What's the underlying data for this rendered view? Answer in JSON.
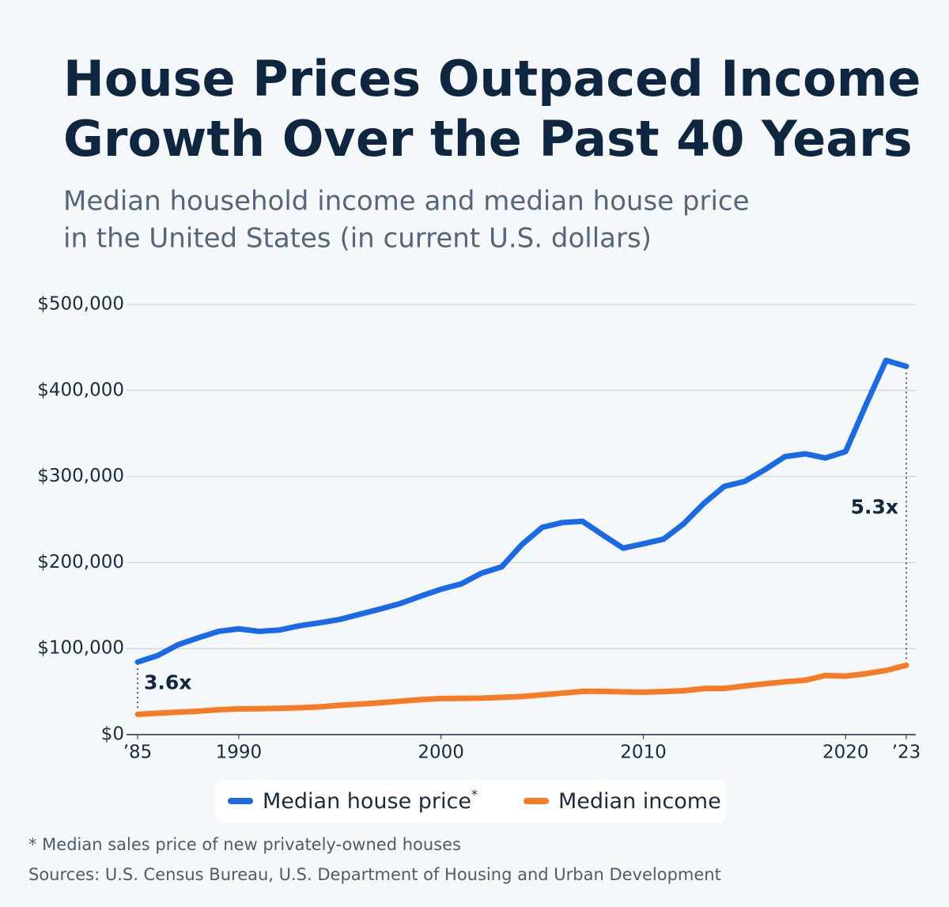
{
  "chart_data": {
    "type": "line",
    "title": [
      "House Prices Outpaced Income",
      "Growth Over the Past 40 Years"
    ],
    "subtitle": [
      "Median household income and median house price",
      "in the United States (in current U.S. dollars)"
    ],
    "x": [
      1985,
      1986,
      1987,
      1988,
      1989,
      1990,
      1991,
      1992,
      1993,
      1994,
      1995,
      1996,
      1997,
      1998,
      1999,
      2000,
      2001,
      2002,
      2003,
      2004,
      2005,
      2006,
      2007,
      2008,
      2009,
      2010,
      2011,
      2012,
      2013,
      2014,
      2015,
      2016,
      2017,
      2018,
      2019,
      2020,
      2021,
      2022,
      2023
    ],
    "series": [
      {
        "name": "Median house price",
        "name_marker": "*",
        "color": "#1a6ae8",
        "values": [
          84300,
          92000,
          104500,
          112500,
          120000,
          122900,
          120000,
          121500,
          126500,
          130000,
          133900,
          140000,
          146000,
          152500,
          161000,
          169000,
          175200,
          187600,
          195000,
          221000,
          240900,
          246500,
          247900,
          232100,
          216700,
          221800,
          227200,
          245200,
          268900,
          288500,
          294200,
          307800,
          323100,
          326400,
          321500,
          329000,
          383000,
          435000,
          428000
        ]
      },
      {
        "name": "Median income",
        "color": "#f97a25",
        "values": [
          23600,
          24900,
          26100,
          27200,
          28900,
          29900,
          30100,
          30600,
          31200,
          32300,
          34100,
          35500,
          37000,
          38900,
          40700,
          41990,
          42200,
          42400,
          43300,
          44300,
          46300,
          48200,
          50200,
          50300,
          49800,
          49300,
          50100,
          51000,
          53600,
          53700,
          56500,
          59000,
          61400,
          63200,
          68700,
          68000,
          70800,
          74600,
          80600
        ]
      }
    ],
    "xlim": [
      1985,
      2023
    ],
    "xticks": [
      {
        "value": 1985,
        "label": "’85"
      },
      1990,
      2000,
      2010,
      2020,
      {
        "value": 2023,
        "label": "’23"
      }
    ],
    "ylim": [
      0,
      500000
    ],
    "yticks": [
      {
        "value": 0,
        "label": "$0"
      },
      {
        "value": 100000,
        "label": "$100,000"
      },
      {
        "value": 200000,
        "label": "$200,000"
      },
      {
        "value": 300000,
        "label": "$300,000"
      },
      {
        "value": 400000,
        "label": "$400,000"
      },
      {
        "value": 500000,
        "label": "$500,000"
      }
    ],
    "grid": true,
    "annotations": [
      "3.6x",
      "5.3x"
    ],
    "footnote": "* Median sales price of new privately-owned houses",
    "source": "Sources: U.S. Census Bureau, U.S. Department of Housing and Urban Development"
  }
}
